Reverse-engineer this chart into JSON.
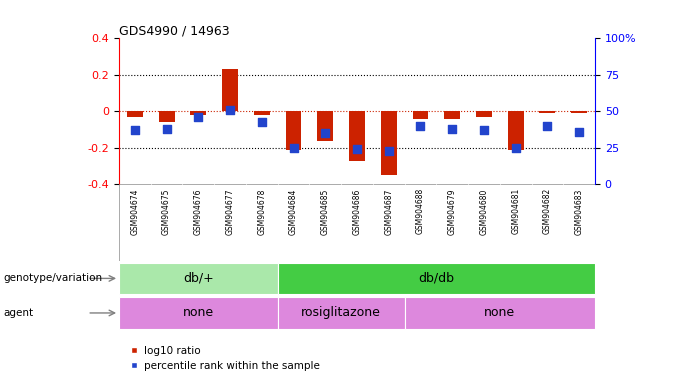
{
  "title": "GDS4990 / 14963",
  "samples": [
    "GSM904674",
    "GSM904675",
    "GSM904676",
    "GSM904677",
    "GSM904678",
    "GSM904684",
    "GSM904685",
    "GSM904686",
    "GSM904687",
    "GSM904688",
    "GSM904679",
    "GSM904680",
    "GSM904681",
    "GSM904682",
    "GSM904683"
  ],
  "log10_ratio": [
    -0.03,
    -0.06,
    -0.02,
    0.23,
    -0.02,
    -0.21,
    -0.16,
    -0.27,
    -0.35,
    -0.04,
    -0.04,
    -0.03,
    -0.21,
    -0.01,
    -0.01
  ],
  "percentile_rank": [
    37,
    38,
    46,
    51,
    43,
    25,
    35,
    24,
    23,
    40,
    38,
    37,
    25,
    40,
    36
  ],
  "ylim_left": [
    -0.4,
    0.4
  ],
  "ylim_right": [
    0,
    100
  ],
  "yticks_left": [
    -0.4,
    -0.2,
    0.0,
    0.2,
    0.4
  ],
  "yticks_right": [
    0,
    25,
    50,
    75,
    100
  ],
  "bar_color": "#cc2200",
  "dot_color": "#2244cc",
  "hline_color": "#cc2200",
  "dotted_color": "#000000",
  "dotted_vals": [
    -0.2,
    0.2
  ],
  "genotype_groups": [
    {
      "label": "db/+",
      "start": 0,
      "end": 5,
      "color": "#aae8aa"
    },
    {
      "label": "db/db",
      "start": 5,
      "end": 15,
      "color": "#44cc44"
    }
  ],
  "agent_groups": [
    {
      "label": "none",
      "start": 0,
      "end": 5,
      "color": "#dd88dd"
    },
    {
      "label": "rosiglitazone",
      "start": 5,
      "end": 9,
      "color": "#dd88dd"
    },
    {
      "label": "none",
      "start": 9,
      "end": 15,
      "color": "#dd88dd"
    }
  ],
  "legend_items": [
    {
      "label": "log10 ratio",
      "color": "#cc2200"
    },
    {
      "label": "percentile rank within the sample",
      "color": "#2244cc"
    }
  ],
  "bar_width": 0.5,
  "dot_size": 30,
  "background_color": "#ffffff",
  "genotype_label": "genotype/variation",
  "agent_label": "agent",
  "tick_bg_color": "#cccccc"
}
